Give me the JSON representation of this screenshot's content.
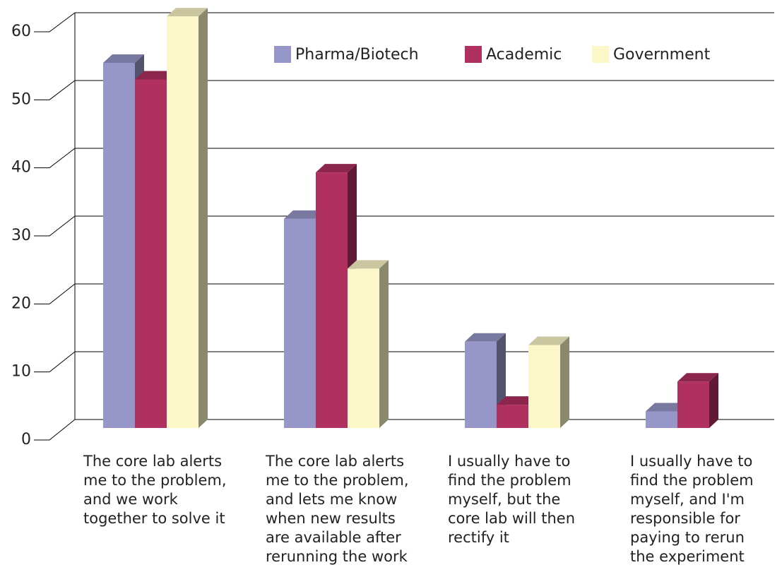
{
  "chart_data": {
    "type": "bar3d",
    "categories": [
      "The core lab alerts\nme to the problem,\nand we work\ntogether to solve it",
      "The core lab alerts\nme to the problem,\nand lets me know\nwhen new results\nare available after\nrerunning the work",
      "I usually have to\nfind the problem\nmyself, but the\ncore lab will then\nrectify it",
      "I usually have to\nfind the problem\nmyself, and I'm\nresponsible for\npaying to rerun\nthe experiment"
    ],
    "series": [
      {
        "name": "Pharma/Biotech",
        "color": "#9696c8",
        "values": [
          55,
          31.5,
          13,
          2.5
        ]
      },
      {
        "name": "Academic",
        "color": "#b03060",
        "values": [
          52.5,
          38.5,
          3.5,
          7
        ]
      },
      {
        "name": "Government",
        "color": "#fbf7c8",
        "values": [
          62,
          24,
          12.5,
          0
        ]
      }
    ],
    "ylim": [
      0,
      60
    ],
    "yticks": [
      0,
      10,
      20,
      30,
      40,
      50,
      60
    ],
    "grid": true,
    "legend": "top"
  }
}
